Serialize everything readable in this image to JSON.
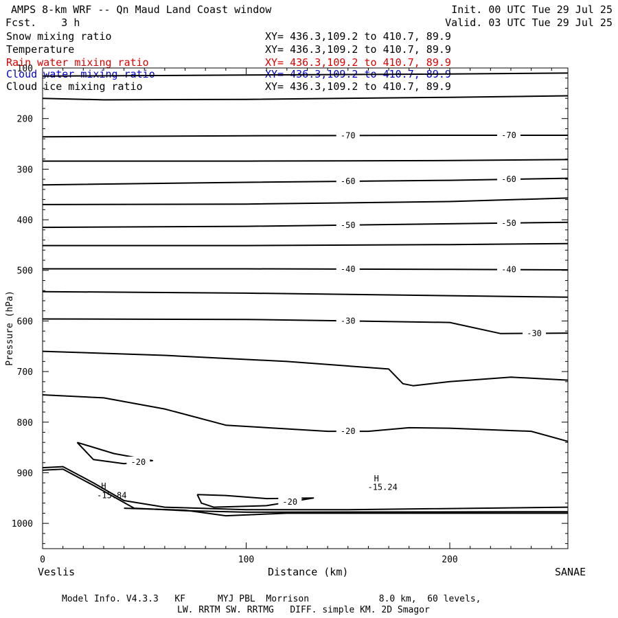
{
  "header": {
    "title": "AMPS 8-km WRF -- Qn Maud Land Coast window",
    "fcst": "Fcst.    3 h",
    "init": "Init. 00 UTC Tue 29 Jul 25",
    "valid": "Valid. 03 UTC Tue 29 Jul 25"
  },
  "fields": [
    {
      "name": "Snow mixing ratio",
      "xy": "XY= 436.3,109.2 to 410.7, 89.9",
      "color": "#000000"
    },
    {
      "name": "Temperature",
      "xy": "XY= 436.3,109.2 to 410.7, 89.9",
      "color": "#000000"
    },
    {
      "name": "Rain water mixing ratio",
      "xy": "XY= 436.3,109.2 to 410.7, 89.9",
      "color": "#e00000"
    },
    {
      "name": "Cloud water mixing ratio",
      "xy": "XY= 436.3,109.2 to 410.7, 89.9",
      "color": "#0000d0"
    },
    {
      "name": "Cloud ice mixing ratio",
      "xy": "XY= 436.3,109.2 to 410.7, 89.9",
      "color": "#000000"
    }
  ],
  "footer": {
    "line1": "Model Info. V4.3.3   KF      MYJ PBL  Morrison             8.0 km,  60 levels,",
    "line2": "LW. RRTM SW. RRTMG   DIFF. simple KM. 2D Smagor"
  },
  "chart_data": {
    "type": "line",
    "xlabel": "Distance (km)",
    "ylabel": "Pressure (hPa)",
    "xlim": [
      0,
      258
    ],
    "ylim": [
      1050,
      100
    ],
    "y_scale": "linear-inverted",
    "x_ticks": [
      0,
      100,
      200
    ],
    "y_ticks": [
      100,
      200,
      300,
      400,
      500,
      600,
      700,
      800,
      900,
      1000
    ],
    "x_end_labels": {
      "left": "Veslis",
      "right": "SANAE"
    },
    "series": [
      {
        "values": [
          [
            0,
            116
          ],
          [
            100,
            114
          ],
          [
            200,
            112
          ],
          [
            258,
            110
          ]
        ]
      },
      {
        "values": [
          [
            0,
            160
          ],
          [
            30,
            163
          ],
          [
            100,
            162
          ],
          [
            200,
            158
          ],
          [
            258,
            155
          ]
        ]
      },
      {
        "label": "-70",
        "values": [
          [
            0,
            236
          ],
          [
            100,
            234
          ],
          [
            200,
            233
          ],
          [
            258,
            233
          ]
        ]
      },
      {
        "values": [
          [
            0,
            284
          ],
          [
            100,
            284
          ],
          [
            200,
            283
          ],
          [
            258,
            281
          ]
        ]
      },
      {
        "label": "-60",
        "values": [
          [
            0,
            331
          ],
          [
            100,
            326
          ],
          [
            200,
            322
          ],
          [
            258,
            318
          ]
        ]
      },
      {
        "values": [
          [
            0,
            370
          ],
          [
            100,
            369
          ],
          [
            200,
            364
          ],
          [
            258,
            357
          ]
        ]
      },
      {
        "label": "-50",
        "values": [
          [
            0,
            415
          ],
          [
            100,
            413
          ],
          [
            200,
            408
          ],
          [
            258,
            405
          ]
        ]
      },
      {
        "values": [
          [
            0,
            451
          ],
          [
            100,
            451
          ],
          [
            200,
            449
          ],
          [
            258,
            447
          ]
        ]
      },
      {
        "label": "-40",
        "values": [
          [
            0,
            497
          ],
          [
            100,
            497
          ],
          [
            200,
            498
          ],
          [
            258,
            499
          ]
        ]
      },
      {
        "values": [
          [
            0,
            542
          ],
          [
            100,
            545
          ],
          [
            200,
            550
          ],
          [
            258,
            553
          ]
        ]
      },
      {
        "label": "-30",
        "values": [
          [
            0,
            596
          ],
          [
            100,
            597
          ],
          [
            200,
            603
          ],
          [
            225,
            625
          ],
          [
            258,
            624
          ]
        ]
      },
      {
        "values": [
          [
            0,
            660
          ],
          [
            60,
            668
          ],
          [
            120,
            680
          ],
          [
            170,
            695
          ],
          [
            177,
            724
          ],
          [
            182,
            728
          ],
          [
            200,
            720
          ],
          [
            230,
            711
          ],
          [
            258,
            717
          ]
        ]
      },
      {
        "label": "-20",
        "values": [
          [
            0,
            746
          ],
          [
            30,
            752
          ],
          [
            60,
            774
          ],
          [
            90,
            806
          ],
          [
            140,
            818
          ],
          [
            160,
            818
          ],
          [
            180,
            811
          ],
          [
            200,
            812
          ],
          [
            240,
            818
          ],
          [
            258,
            838
          ]
        ]
      },
      {
        "label": "-20",
        "values": [
          [
            17,
            840
          ],
          [
            35,
            862
          ],
          [
            54,
            876
          ],
          [
            40,
            882
          ],
          [
            25,
            874
          ],
          [
            17,
            840
          ]
        ]
      },
      {
        "label": "-20",
        "values": [
          [
            76,
            943
          ],
          [
            90,
            945
          ],
          [
            110,
            951
          ],
          [
            133,
            950
          ],
          [
            110,
            965
          ],
          [
            84,
            968
          ],
          [
            78,
            960
          ],
          [
            76,
            943
          ]
        ]
      },
      {
        "values": [
          [
            0,
            890
          ],
          [
            10,
            888
          ],
          [
            25,
            920
          ],
          [
            40,
            955
          ],
          [
            60,
            968
          ],
          [
            100,
            973
          ],
          [
            150,
            973
          ],
          [
            258,
            968
          ]
        ]
      },
      {
        "values": [
          [
            0,
            895
          ],
          [
            10,
            893
          ],
          [
            25,
            925
          ],
          [
            45,
            970
          ],
          [
            70,
            975
          ],
          [
            100,
            978
          ],
          [
            258,
            977
          ]
        ]
      },
      {
        "values": [
          [
            40,
            970
          ],
          [
            70,
            974
          ],
          [
            90,
            985
          ],
          [
            120,
            980
          ],
          [
            258,
            980
          ]
        ]
      }
    ],
    "annotations": [
      {
        "text": "H",
        "x": 30,
        "y": 932
      },
      {
        "text": "-15.84",
        "x": 34,
        "y": 950
      },
      {
        "text": "H",
        "x": 164,
        "y": 917
      },
      {
        "text": "-15.24",
        "x": 167,
        "y": 934
      }
    ]
  }
}
